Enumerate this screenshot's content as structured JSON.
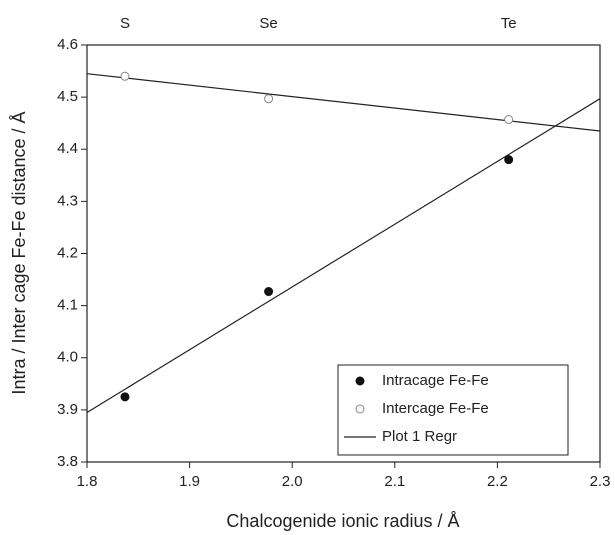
{
  "chart_data": {
    "type": "scatter",
    "xlabel": "Chalcogenide ionic radius / Å",
    "ylabel": "Intra / Inter cage Fe-Fe distance / Å",
    "xlim": [
      1.8,
      2.3
    ],
    "xticks": [
      1.8,
      1.9,
      {
        "value": 2,
        "label": "2.0"
      },
      2.1,
      2.2,
      2.3
    ],
    "ylim": [
      3.8,
      4.6
    ],
    "yticks": [
      3.8,
      3.9,
      {
        "value": 4,
        "label": "4.0"
      },
      4.1,
      4.2,
      4.3,
      4.4,
      4.5,
      4.6
    ],
    "top_labels": [
      {
        "text": "S",
        "x": 1.837
      },
      {
        "text": "Se",
        "x": 1.977
      },
      {
        "text": "Te",
        "x": 2.211
      }
    ],
    "series": [
      {
        "name": "Intracage Fe-Fe",
        "color": "#111111",
        "filled": true,
        "x": [
          1.837,
          1.977,
          2.211
        ],
        "values": [
          3.925,
          4.127,
          4.38
        ]
      },
      {
        "name": "Intercage Fe-Fe",
        "color": "#888888",
        "filled": false,
        "x": [
          1.837,
          1.977,
          2.211
        ],
        "values": [
          4.54,
          4.497,
          4.457
        ]
      }
    ],
    "regression": {
      "name": "Plot 1 Regr",
      "color": "#222222",
      "lines": [
        {
          "x": [
            1.8,
            2.3
          ],
          "values": [
            3.895,
            4.497
          ]
        },
        {
          "x": [
            1.8,
            2.3
          ],
          "values": [
            4.545,
            4.435
          ]
        }
      ]
    },
    "legend": "lower right"
  }
}
